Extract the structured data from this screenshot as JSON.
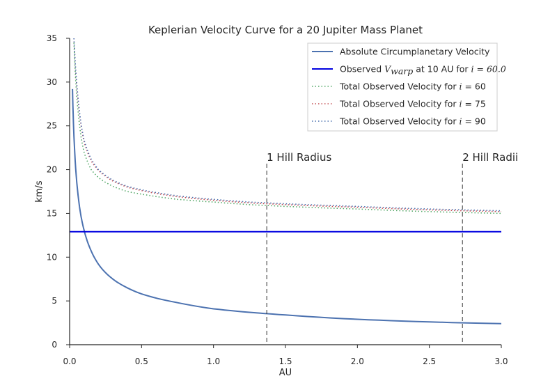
{
  "chart_data": {
    "type": "line",
    "title": "Keplerian Velocity Curve for a 20 Jupiter Mass Planet",
    "xlabel": "AU",
    "ylabel": "km/s",
    "xlim": [
      0.0,
      3.0
    ],
    "ylim": [
      0,
      35
    ],
    "xticks": [
      "0.0",
      "0.5",
      "1.0",
      "1.5",
      "2.0",
      "2.5",
      "3.0"
    ],
    "yticks": [
      "0",
      "5",
      "10",
      "15",
      "20",
      "25",
      "30",
      "35"
    ],
    "grid": false,
    "legend_position": "top-right",
    "series": [
      {
        "name": "Absolute Circumplanetary Velocity",
        "style": "solid",
        "color": "#4c72b0",
        "x": [
          0.02,
          0.03,
          0.05,
          0.08,
          0.1,
          0.15,
          0.2,
          0.3,
          0.4,
          0.5,
          0.75,
          1.0,
          1.25,
          1.5,
          2.0,
          2.5,
          3.0
        ],
        "y": [
          29.2,
          23.8,
          18.5,
          14.6,
          13.1,
          10.7,
          9.2,
          7.5,
          6.5,
          5.8,
          4.8,
          4.1,
          3.7,
          3.4,
          2.9,
          2.6,
          2.4
        ]
      },
      {
        "name": "Observed",
        "name_math": "V",
        "name_math_sub": "warp",
        "name_tail": "at 10 AU for",
        "name_math2": "i",
        "name_tail2": "= 60.0",
        "style": "solid",
        "color": "#0000e0",
        "x": [
          0.0,
          3.0
        ],
        "y": [
          12.9,
          12.9
        ]
      },
      {
        "name": "Total Observed Velocity for",
        "name_math": "i",
        "name_tail": "= 60",
        "style": "dotted",
        "color": "#55a868",
        "x": [
          0.03,
          0.05,
          0.08,
          0.1,
          0.15,
          0.2,
          0.3,
          0.4,
          0.5,
          0.75,
          1.0,
          1.25,
          1.5,
          2.0,
          2.5,
          3.0
        ],
        "y": [
          34.5,
          28.3,
          23.7,
          22.0,
          20.0,
          19.1,
          18.1,
          17.5,
          17.2,
          16.6,
          16.3,
          16.0,
          15.8,
          15.5,
          15.2,
          15.0
        ]
      },
      {
        "name": "Total Observed Velocity for",
        "name_math": "i",
        "name_tail": "= 75",
        "style": "dotted",
        "color": "#c44e52",
        "x": [
          0.03,
          0.05,
          0.08,
          0.1,
          0.15,
          0.2,
          0.3,
          0.4,
          0.5,
          0.75,
          1.0,
          1.25,
          1.5,
          2.0,
          2.5,
          3.0
        ],
        "y": [
          35.0,
          29.5,
          25.0,
          23.2,
          21.0,
          19.9,
          18.7,
          18.0,
          17.6,
          16.9,
          16.5,
          16.2,
          16.0,
          15.7,
          15.4,
          15.2
        ]
      },
      {
        "name": "Total Observed Velocity for",
        "name_math": "i",
        "name_tail": "= 90",
        "style": "dotted",
        "color": "#4c72b0",
        "x": [
          0.03,
          0.05,
          0.08,
          0.1,
          0.15,
          0.2,
          0.3,
          0.4,
          0.5,
          0.75,
          1.0,
          1.25,
          1.5,
          2.0,
          2.5,
          3.0
        ],
        "y": [
          35.0,
          29.8,
          25.2,
          23.4,
          21.2,
          20.0,
          18.8,
          18.1,
          17.7,
          17.0,
          16.6,
          16.3,
          16.1,
          15.8,
          15.5,
          15.3
        ]
      }
    ],
    "annotations": [
      {
        "label": "1 Hill Radius",
        "x": 1.37,
        "style": "dashed"
      },
      {
        "label": "2 Hill Radii",
        "x": 2.73,
        "style": "dashed"
      }
    ]
  }
}
